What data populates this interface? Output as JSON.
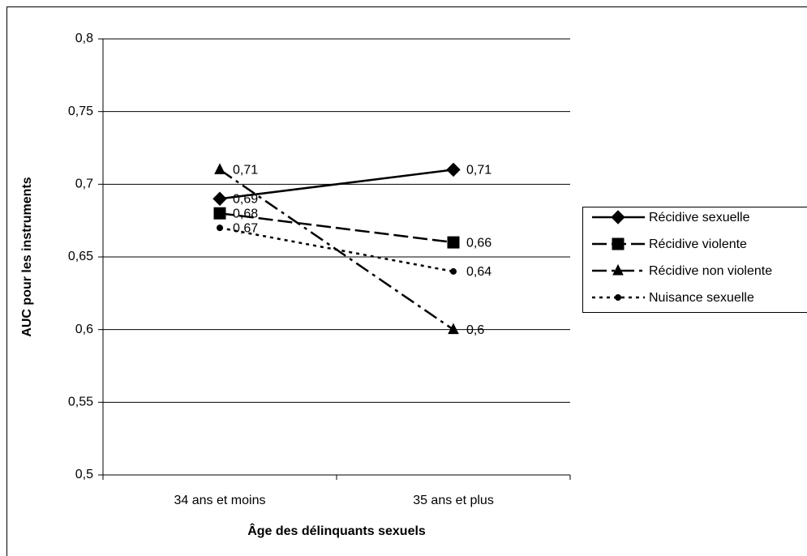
{
  "chart_data": {
    "type": "line",
    "y_label": "AUC pour les instruments",
    "x_label": "Âge des délinquants sexuels",
    "categories": [
      "34 ans et moins",
      "35 ans et plus"
    ],
    "series": [
      {
        "name": "Récidive sexuelle",
        "color": "#000000",
        "marker": "diamond",
        "line_style": "solid",
        "values": [
          0.69,
          0.71
        ],
        "value_labels": [
          "0,69",
          "0,71"
        ]
      },
      {
        "name": "Récidive violente",
        "color": "#000000",
        "marker": "square",
        "line_style": "dash",
        "values": [
          0.68,
          0.66
        ],
        "value_labels": [
          "0,68",
          "0,66"
        ]
      },
      {
        "name": "Récidive non violente",
        "color": "#000000",
        "marker": "triangle",
        "line_style": "dashdot",
        "values": [
          0.71,
          0.6
        ],
        "value_labels": [
          "0,71",
          "0,6"
        ]
      },
      {
        "name": "Nuisance sexuelle",
        "color": "#000000",
        "marker": "circle",
        "line_style": "dot",
        "values": [
          0.67,
          0.64
        ],
        "value_labels": [
          "0,67",
          "0,64"
        ]
      }
    ],
    "ylim": [
      0.5,
      0.8
    ],
    "yticks": [
      {
        "value": 0.5,
        "label": "0,5"
      },
      {
        "value": 0.55,
        "label": "0,55"
      },
      {
        "value": 0.6,
        "label": "0,6"
      },
      {
        "value": 0.65,
        "label": "0,65"
      },
      {
        "value": 0.7,
        "label": "0,7"
      },
      {
        "value": 0.75,
        "label": "0,75"
      },
      {
        "value": 0.8,
        "label": "0,8"
      }
    ],
    "grid": true,
    "legend": "right"
  }
}
